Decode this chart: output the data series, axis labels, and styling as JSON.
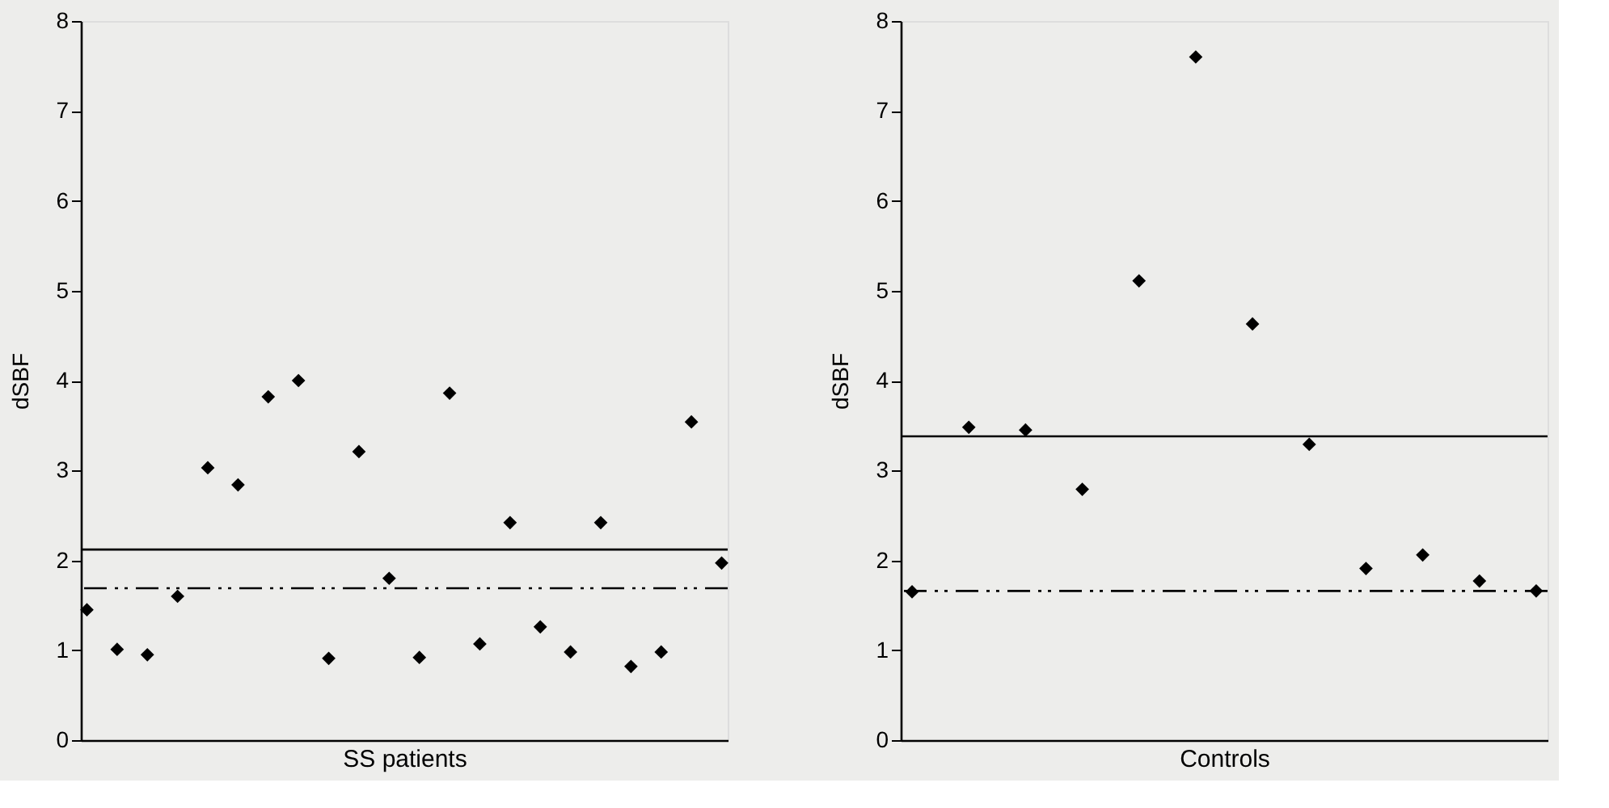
{
  "chart_data": [
    {
      "type": "scatter",
      "xlabel": "SS patients",
      "ylabel": "dSBF",
      "categories": [
        null,
        null,
        null,
        null,
        null,
        null,
        null,
        null,
        null,
        null,
        null,
        null,
        null,
        null,
        null,
        null,
        null,
        null,
        null,
        null,
        null,
        null
      ],
      "series": [
        {
          "color": "#000000",
          "values": [
            1.45,
            1.01,
            0.95,
            1.6,
            3.03,
            2.84,
            3.82,
            4.0,
            0.91,
            3.21,
            1.8,
            0.92,
            3.86,
            1.07,
            2.42,
            1.26,
            0.98,
            2.42,
            0.82,
            0.98,
            3.54,
            1.97
          ]
        }
      ],
      "marker": "diamond",
      "ylim": [
        0,
        8
      ],
      "yticks": [
        0,
        1,
        2,
        3,
        4,
        5,
        6,
        7,
        8
      ],
      "grid": false,
      "legend": false,
      "tick_labels": "y",
      "ref_lines": [
        {
          "axis": "y",
          "value": 2.12,
          "color": "#000000",
          "line_style": "solid"
        },
        {
          "axis": "y",
          "value": 1.69,
          "color": "#000000",
          "line_style": "dashdot"
        }
      ]
    },
    {
      "type": "scatter",
      "xlabel": "Controls",
      "ylabel": "dSBF",
      "categories": [
        null,
        null,
        null,
        null,
        null,
        null,
        null,
        null,
        null,
        null,
        null,
        null
      ],
      "series": [
        {
          "color": "#000000",
          "values": [
            1.65,
            3.48,
            3.45,
            2.79,
            5.11,
            7.6,
            4.63,
            3.29,
            1.91,
            2.06,
            1.77,
            1.66
          ]
        }
      ],
      "marker": "diamond",
      "ylim": [
        0,
        8
      ],
      "yticks": [
        0,
        1,
        2,
        3,
        4,
        5,
        6,
        7,
        8
      ],
      "grid": false,
      "legend": false,
      "tick_labels": "y",
      "ref_lines": [
        {
          "axis": "y",
          "value": 3.38,
          "color": "#000000",
          "line_style": "solid"
        },
        {
          "axis": "y",
          "value": 1.66,
          "color": "#000000",
          "line_style": "dashdot"
        }
      ]
    }
  ]
}
